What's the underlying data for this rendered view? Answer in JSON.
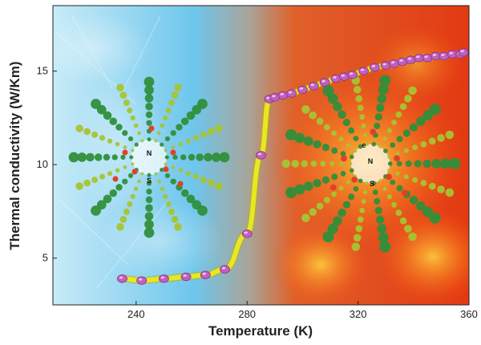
{
  "chart_data": {
    "type": "line",
    "title": "",
    "xlabel": "Temperature (K)",
    "ylabel": "Thermal conductivity (W/Km)",
    "xlim": [
      210,
      360
    ],
    "ylim": [
      2.5,
      18.5
    ],
    "x_ticks": [
      "240",
      "280",
      "320",
      "360"
    ],
    "y_ticks": [
      "5",
      "10",
      "15"
    ],
    "grid": false,
    "legend": "none",
    "series": [
      {
        "x": [
          235,
          242,
          250,
          258,
          265,
          272,
          280,
          285,
          288,
          290,
          293,
          296,
          300,
          304,
          308,
          312,
          315,
          318,
          322,
          326,
          330,
          333,
          336,
          339,
          342,
          345,
          348,
          351,
          354,
          357,
          358
        ],
        "y": [
          3.9,
          3.8,
          3.9,
          4.0,
          4.1,
          4.4,
          6.3,
          10.5,
          13.5,
          13.6,
          13.7,
          13.8,
          14.0,
          14.2,
          14.4,
          14.6,
          14.7,
          14.8,
          15.0,
          15.2,
          15.3,
          15.4,
          15.5,
          15.6,
          15.7,
          15.7,
          15.8,
          15.8,
          15.9,
          15.9,
          16.0
        ],
        "color": "#c060c0"
      }
    ],
    "trend_color": "#e8e820",
    "background_colors": {
      "cold": "#6ec6ec",
      "hot": "#e23a12"
    },
    "spin_glyphs": {
      "left": {
        "center": "N",
        "bottom": "S"
      },
      "right": {
        "top": "e",
        "center": "N",
        "bottom": "S"
      }
    }
  }
}
